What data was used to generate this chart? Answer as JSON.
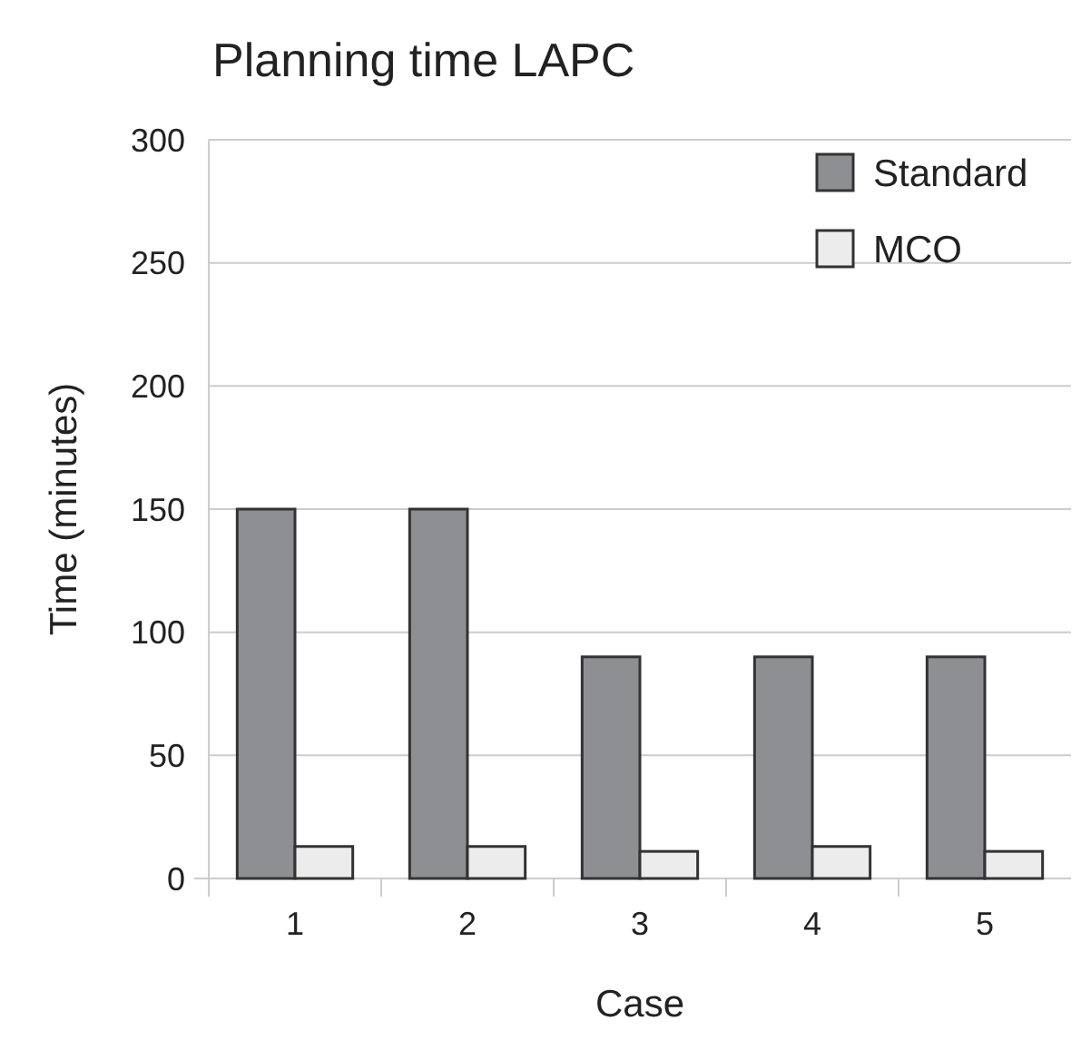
{
  "chart_data": {
    "type": "bar",
    "title": "Planning time LAPC",
    "xlabel": "Case",
    "ylabel": "Time (minutes)",
    "categories": [
      "1",
      "2",
      "3",
      "4",
      "5"
    ],
    "series": [
      {
        "name": "Standard",
        "color": "#8e8f93",
        "values": [
          150,
          150,
          90,
          90,
          90
        ]
      },
      {
        "name": "MCO",
        "color": "#ececec",
        "values": [
          13,
          13,
          11,
          13,
          11
        ]
      }
    ],
    "ylim": [
      0,
      300
    ],
    "yticks": [
      0,
      50,
      100,
      150,
      200,
      250,
      300
    ],
    "grid": "y",
    "legend": "top right"
  }
}
